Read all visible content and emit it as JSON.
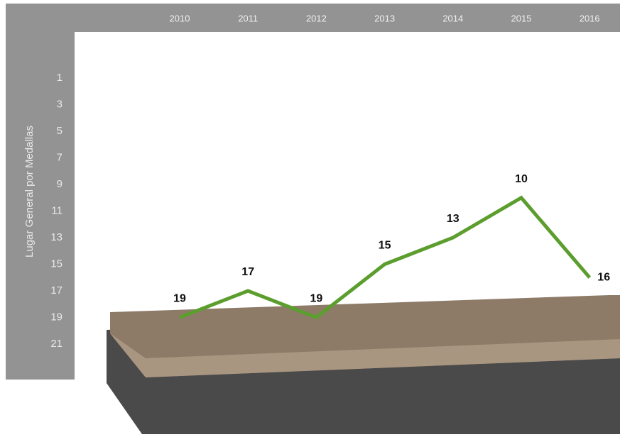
{
  "chart_data": {
    "type": "line",
    "y_label": "Lugar General por Medallas",
    "categories": [
      "2010",
      "2011",
      "2012",
      "2013",
      "2014",
      "2015",
      "2016"
    ],
    "series": [
      {
        "name": "Lugar",
        "color": "#5c9e2e",
        "values": [
          19,
          17,
          19,
          15,
          13,
          10,
          16
        ]
      }
    ],
    "ylim": [
      0,
      22
    ],
    "y_inverted": true,
    "yticks": [
      1,
      3,
      5,
      7,
      9,
      11,
      13,
      15,
      17,
      19,
      21
    ]
  }
}
